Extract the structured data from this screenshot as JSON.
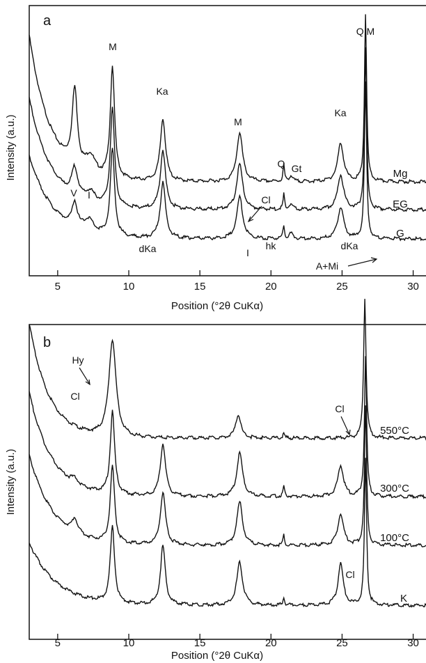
{
  "chart_data": [
    {
      "panel": "a",
      "type": "line",
      "xlabel": "Position (°2θ CuKα)",
      "ylabel": "Intensity (a.u.)",
      "xlim": [
        3,
        31
      ],
      "x_ticks": [
        5,
        10,
        15,
        20,
        25,
        30
      ],
      "y_ticks": [],
      "series": [
        {
          "name": "Mg",
          "peaks": [
            6.2,
            8.85,
            12.4,
            17.8,
            20.9,
            24.9,
            26.65
          ]
        },
        {
          "name": "EG",
          "peaks": [
            6.2,
            8.85,
            12.4,
            17.8,
            20.9,
            24.9,
            26.65
          ]
        },
        {
          "name": "G",
          "peaks": [
            6.2,
            8.85,
            12.4,
            17.8,
            20.9,
            24.9,
            26.65
          ]
        }
      ],
      "annotations": [
        {
          "text": "M",
          "x": 8.85
        },
        {
          "text": "Ka",
          "x": 12.4
        },
        {
          "text": "M",
          "x": 17.8
        },
        {
          "text": "Q",
          "x": 20.85
        },
        {
          "text": "Gt",
          "x": 21.3
        },
        {
          "text": "Ka",
          "x": 24.9
        },
        {
          "text": "Q,M",
          "x": 26.65
        },
        {
          "text": "V",
          "x": 6.2
        },
        {
          "text": "I",
          "x": 7.2
        },
        {
          "text": "Cl",
          "x": 18.4
        },
        {
          "text": "dKa",
          "x": 12.4
        },
        {
          "text": "I",
          "x": 18.2
        },
        {
          "text": "hk",
          "x": 19.8
        },
        {
          "text": "dKa",
          "x": 25.0
        },
        {
          "text": "A+Mi",
          "x": 27.3
        }
      ]
    },
    {
      "panel": "b",
      "type": "line",
      "xlabel": "Position (°2θ CuKα)",
      "ylabel": "Intensity (a.u.)",
      "xlim": [
        3,
        31
      ],
      "x_ticks": [
        5,
        10,
        15,
        20,
        25,
        30
      ],
      "y_ticks": [],
      "series": [
        {
          "name": "550°C",
          "peaks": [
            8.85,
            17.7,
            20.9,
            26.6
          ]
        },
        {
          "name": "300°C",
          "peaks": [
            6.2,
            8.85,
            12.4,
            17.8,
            20.9,
            24.9,
            26.65
          ]
        },
        {
          "name": "100°C",
          "peaks": [
            6.2,
            8.85,
            12.4,
            17.8,
            20.9,
            24.9,
            26.65
          ]
        },
        {
          "name": "K",
          "peaks": [
            8.85,
            12.4,
            17.8,
            20.9,
            24.9,
            26.65
          ]
        }
      ],
      "annotations": [
        {
          "text": "Hy",
          "x": 7.5
        },
        {
          "text": "Cl",
          "x": 6.3
        },
        {
          "text": "Cl",
          "x": 25.3
        },
        {
          "text": "Cl",
          "x": 25.4
        }
      ]
    }
  ],
  "panels": [
    {
      "letter": "a",
      "xlabel": "Position (°2θ CuKα)",
      "ylabel": "Intensity (a.u.)",
      "ticks": [
        "5",
        "10",
        "15",
        "20",
        "25",
        "30"
      ],
      "series_labels": [
        "Mg",
        "EG",
        "G"
      ],
      "peak_labels": [
        "M",
        "Ka",
        "M",
        "Q",
        "Gt",
        "Ka",
        "Q,M",
        "V",
        "I",
        "Cl",
        "dKa",
        "I",
        "hk",
        "dKa",
        "A+Mi"
      ]
    },
    {
      "letter": "b",
      "xlabel": "Position (°2θ CuKα)",
      "ylabel": "Intensity (a.u.)",
      "ticks": [
        "5",
        "10",
        "15",
        "20",
        "25",
        "30"
      ],
      "series_labels": [
        "550°C",
        "300°C",
        "100°C",
        "K"
      ],
      "peak_labels": [
        "Hy",
        "Cl",
        "Cl",
        "Cl"
      ]
    }
  ]
}
